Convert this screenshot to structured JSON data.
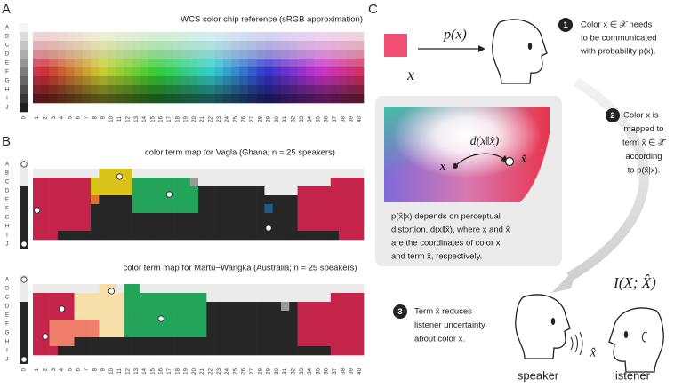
{
  "panels": {
    "a": {
      "label": "A",
      "title": "WCS color chip reference (sRGB approximation)",
      "rows": [
        "A",
        "B",
        "C",
        "D",
        "E",
        "F",
        "G",
        "H",
        "I",
        "J"
      ],
      "columns": [
        0,
        1,
        2,
        3,
        4,
        5,
        6,
        7,
        8,
        9,
        10,
        11,
        12,
        13,
        14,
        15,
        16,
        17,
        18,
        19,
        20,
        21,
        22,
        23,
        24,
        25,
        26,
        27,
        28,
        29,
        30,
        31,
        32,
        33,
        34,
        35,
        36,
        37,
        38,
        39,
        40
      ]
    },
    "b": {
      "label": "B",
      "maps": [
        {
          "title": "color term map for Vagla (Ghana; n = 25 speakers)",
          "rows": [
            "A",
            "B",
            "C",
            "D",
            "E",
            "F",
            "G",
            "H",
            "I",
            "J"
          ]
        },
        {
          "title": "color term map for Martu−Wangka (Australia; n = 25 speakers)",
          "rows": [
            "A",
            "B",
            "C",
            "D",
            "E",
            "F",
            "G",
            "H",
            "I",
            "J"
          ]
        }
      ],
      "columns": [
        0,
        1,
        2,
        3,
        4,
        5,
        6,
        7,
        8,
        9,
        10,
        11,
        12,
        13,
        14,
        15,
        16,
        17,
        18,
        19,
        20,
        21,
        22,
        23,
        24,
        25,
        26,
        27,
        28,
        29,
        30,
        31,
        32,
        33,
        34,
        35,
        36,
        37,
        38,
        39,
        40
      ]
    },
    "c": {
      "label": "C",
      "source_function": "p(x)",
      "source_symbol": "x",
      "steps": [
        {
          "number": "1",
          "lines": [
            "Color x ∈ 𝒳 needs",
            "to be communicated",
            "with probability p(x)."
          ]
        },
        {
          "number": "2",
          "lines": [
            "Color x is",
            "mapped to",
            "term x̂ ∈ 𝒳̂",
            "according",
            "to p(x̂|x)."
          ]
        },
        {
          "number": "3",
          "lines": [
            "Term x̂ reduces",
            "listener uncertainty",
            "about color x."
          ]
        }
      ],
      "distortion": "d(x‖x̂)",
      "point_x": "x",
      "point_xhat": "x̂",
      "box_lines": [
        "p(x̂|x) depends on perceptual",
        "distortion, d(x‖x̂), where x and x̂",
        "are the coordinates of color x",
        "and term x̂, respectively."
      ],
      "information": "I(X; X̂)",
      "utterance": "x̂",
      "speaker": "speaker",
      "listener": "listener"
    }
  }
}
